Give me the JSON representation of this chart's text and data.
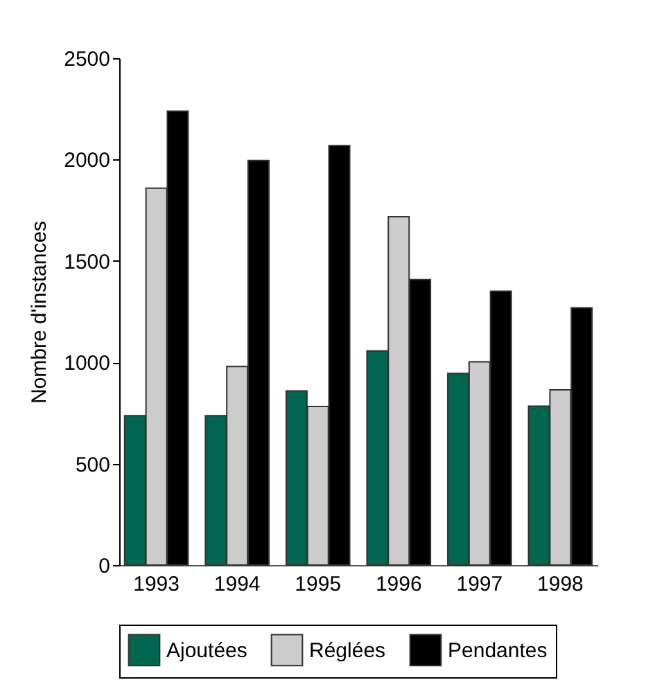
{
  "chart_data": {
    "type": "bar",
    "ylabel": "Nombre d'instances",
    "categories": [
      "1993",
      "1994",
      "1995",
      "1996",
      "1997",
      "1998"
    ],
    "series": [
      {
        "name": "Ajoutées",
        "color": "#00664f",
        "values": [
          737,
          737,
          859,
          1056,
          945,
          784
        ]
      },
      {
        "name": "Réglées",
        "color": "#cccccc",
        "values": [
          1859,
          979,
          782,
          1718,
          1002,
          864
        ]
      },
      {
        "name": "Pendantes",
        "color": "#000000",
        "values": [
          2239,
          1995,
          2069,
          1408,
          1351,
          1269
        ]
      }
    ],
    "ylim": [
      0,
      2500
    ],
    "yticks": [
      0,
      500,
      1000,
      1500,
      2000,
      2500
    ],
    "grid": false,
    "legend": "bottom"
  }
}
